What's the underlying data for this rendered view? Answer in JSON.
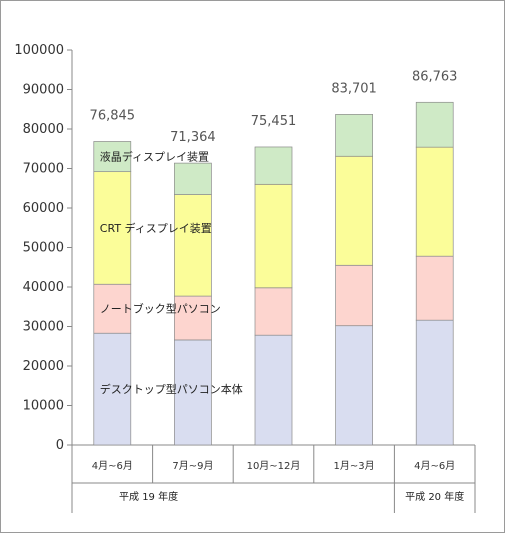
{
  "chart_data": {
    "type": "bar",
    "stacked": true,
    "categories": [
      "4月~6月",
      "7月~9月",
      "10月~12月",
      "1月~3月",
      "4月~6月"
    ],
    "groups": [
      {
        "label": "平成 19 年度",
        "span": [
          0,
          3
        ]
      },
      {
        "label": "平成 20 年度",
        "span": [
          4,
          4
        ]
      }
    ],
    "series": [
      {
        "name": "デスクトップ型パソコン本体",
        "color": "#d9ddf0",
        "values": [
          28300,
          26600,
          27800,
          30200,
          31600
        ]
      },
      {
        "name": "ノートブック型パソコン",
        "color": "#fdd5cf",
        "values": [
          12400,
          11100,
          12000,
          15300,
          16200
        ]
      },
      {
        "name": "CRT ディスプレイ装置",
        "color": "#fbfd99",
        "values": [
          28500,
          25700,
          26200,
          27600,
          27600
        ]
      },
      {
        "name": "液晶ディスプレイ装置",
        "color": "#cfeac6",
        "values": [
          7645,
          7964,
          9451,
          10601,
          11363
        ]
      }
    ],
    "totals": [
      "76,845",
      "71,364",
      "75,451",
      "83,701",
      "86,763"
    ],
    "ylim": [
      0,
      100000
    ],
    "yticks": [
      "0",
      "10000",
      "20000",
      "30000",
      "40000",
      "50000",
      "60000",
      "70000",
      "80000",
      "90000",
      "100000"
    ],
    "grid": false
  }
}
